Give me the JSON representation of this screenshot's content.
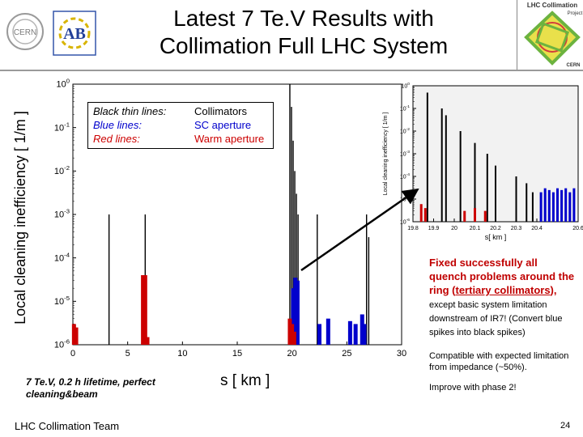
{
  "slide": {
    "title_line1": "Latest 7 Te.V Results with",
    "title_line2": "Collimation Full LHC System",
    "footer": "LHC Collimation Team",
    "page_number": "24"
  },
  "logos": {
    "cern": "CERN",
    "abt": "AB",
    "lhc_line1": "LHC Collimation",
    "lhc_line2": "Project",
    "lhc_small": "CERN"
  },
  "legend": {
    "row1_label": "Black thin lines:",
    "row1_value": "Collimators",
    "row2_label": "Blue lines:",
    "row2_value": "SC aperture",
    "row3_label": "Red lines:",
    "row3_value": "Warm aperture"
  },
  "notes": {
    "beam": "7 Te.V, 0.2 h lifetime, perfect cleaning&beam",
    "fixed_1": "Fixed successfully all quench problems around the ring (",
    "fixed_link": "tertiary collimators",
    "fixed_2": "),",
    "fixed_small": " except basic system limitation downstream of IR7! (Convert blue spikes into black spikes)",
    "compat": "Compatible with expected limitation from impedance (~50%).",
    "improve": "Improve with phase 2!"
  },
  "colors": {
    "collimator": "#000000",
    "sc_aperture": "#0000cc",
    "warm_aperture": "#cc0000",
    "highlight_text": "#c00000"
  },
  "chart_data": [
    {
      "type": "bar",
      "name": "main",
      "xlabel": "s [ km ]",
      "ylabel": "Local cleaning inefficiency [ 1/m ]",
      "yscale": "log",
      "xlim": [
        0,
        30
      ],
      "ylim": [
        1e-06,
        1
      ],
      "x_ticks": [
        0,
        5,
        10,
        15,
        20,
        25,
        30
      ],
      "y_ticks": [
        "10^0",
        "10^-1",
        "10^-2",
        "10^-3",
        "10^-4",
        "10^-5",
        "10^-6"
      ],
      "legend_position": "top-left",
      "grid": false,
      "series": [
        {
          "name": "Collimators",
          "color": "#000000",
          "points": [
            [
              3.3,
              0.001
            ],
            [
              6.6,
              0.001
            ],
            [
              19.8,
              1.0
            ],
            [
              19.95,
              0.3
            ],
            [
              20.1,
              0.05
            ],
            [
              20.25,
              0.01
            ],
            [
              20.4,
              0.003
            ],
            [
              20.55,
              0.001
            ],
            [
              22.3,
              0.001
            ],
            [
              26.8,
              0.001
            ],
            [
              27.0,
              0.0003
            ]
          ]
        },
        {
          "name": "SC aperture",
          "color": "#0000cc",
          "points": [
            [
              20.1,
              2e-05
            ],
            [
              20.3,
              3.5e-05
            ],
            [
              20.5,
              3e-05
            ],
            [
              22.5,
              3e-06
            ],
            [
              23.3,
              4e-06
            ],
            [
              25.3,
              3.5e-06
            ],
            [
              25.8,
              3e-06
            ],
            [
              26.4,
              5e-06
            ],
            [
              26.6,
              3e-06
            ]
          ]
        },
        {
          "name": "Warm aperture",
          "color": "#cc0000",
          "points": [
            [
              0.1,
              3e-06
            ],
            [
              0.3,
              2.5e-06
            ],
            [
              6.4,
              4e-05
            ],
            [
              6.6,
              4e-05
            ],
            [
              6.8,
              1.5e-06
            ],
            [
              19.8,
              4e-06
            ],
            [
              20.0,
              3e-06
            ],
            [
              20.2,
              2e-06
            ]
          ]
        }
      ]
    },
    {
      "type": "bar",
      "name": "inset_zoom_IR7",
      "xlabel": "s[ km ]",
      "ylabel": "Local cleaning inefficiency [ 1/m ]",
      "yscale": "log",
      "xlim": [
        19.8,
        20.6
      ],
      "ylim": [
        1e-06,
        1
      ],
      "x_ticks": [
        "19.8",
        "19.9",
        "20",
        "20.1",
        "20.2",
        "20.3",
        "20.4",
        "20.6"
      ],
      "y_ticks": [
        "10^0",
        "10^-1",
        "10^-2",
        "10^-3",
        "10^-4",
        "10^-5",
        "10^-6"
      ],
      "grid": false,
      "series": [
        {
          "name": "Collimators",
          "color": "#000000",
          "points": [
            [
              19.87,
              0.5
            ],
            [
              19.94,
              0.1
            ],
            [
              19.96,
              0.05
            ],
            [
              20.03,
              0.01
            ],
            [
              20.1,
              0.003
            ],
            [
              20.16,
              0.001
            ],
            [
              20.2,
              0.0003
            ],
            [
              20.3,
              0.0001
            ],
            [
              20.35,
              5e-05
            ],
            [
              20.38,
              2e-05
            ]
          ]
        },
        {
          "name": "SC aperture",
          "color": "#0000cc",
          "points": [
            [
              20.42,
              2e-05
            ],
            [
              20.44,
              3e-05
            ],
            [
              20.46,
              2.5e-05
            ],
            [
              20.48,
              2e-05
            ],
            [
              20.5,
              3e-05
            ],
            [
              20.52,
              2.5e-05
            ],
            [
              20.54,
              3e-05
            ],
            [
              20.56,
              2e-05
            ],
            [
              20.58,
              3e-05
            ]
          ]
        },
        {
          "name": "Warm aperture",
          "color": "#cc0000",
          "points": [
            [
              19.84,
              6e-06
            ],
            [
              19.86,
              4e-06
            ],
            [
              20.05,
              3e-06
            ],
            [
              20.1,
              4e-06
            ],
            [
              20.15,
              3e-06
            ]
          ]
        }
      ]
    }
  ]
}
